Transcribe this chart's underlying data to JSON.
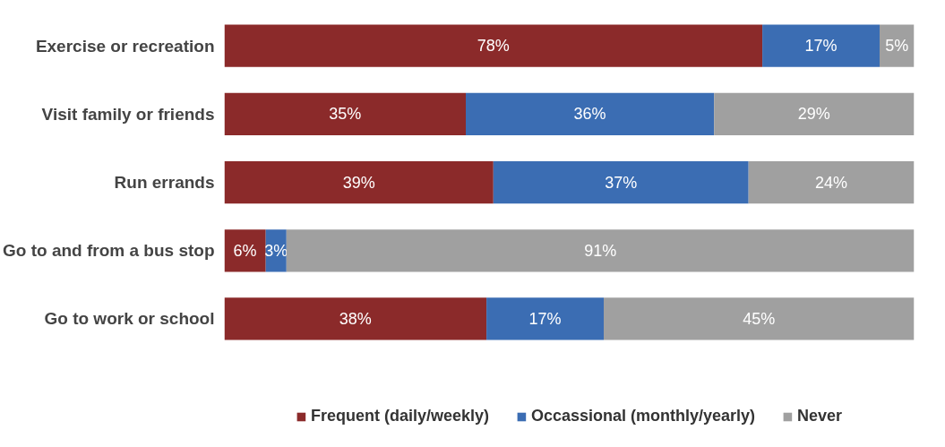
{
  "chart_data": {
    "type": "bar",
    "orientation": "horizontal",
    "stacked": true,
    "legend": "bottom",
    "tick_labels": "y",
    "categories": [
      "Exercise or recreation",
      "Visit family or friends",
      "Run errands",
      "Go to and from a bus stop",
      "Go to work or school"
    ],
    "series": [
      {
        "name": "Frequent (daily/weekly)",
        "color": "#8b2a2a",
        "values": [
          78,
          35,
          39,
          6,
          38
        ],
        "value_labels": [
          "78%",
          "35%",
          "39%",
          "6%",
          "38%"
        ]
      },
      {
        "name": "Occassional (monthly/yearly)",
        "color": "#3b6db3",
        "values": [
          17,
          36,
          37,
          3,
          17
        ],
        "value_labels": [
          "17%",
          "36%",
          "37%",
          "3%",
          "17%"
        ]
      },
      {
        "name": "Never",
        "color": "#a0a0a0",
        "values": [
          5,
          29,
          24,
          91,
          45
        ],
        "value_labels": [
          "5%",
          "29%",
          "24%",
          "91%",
          "45%"
        ]
      }
    ]
  }
}
